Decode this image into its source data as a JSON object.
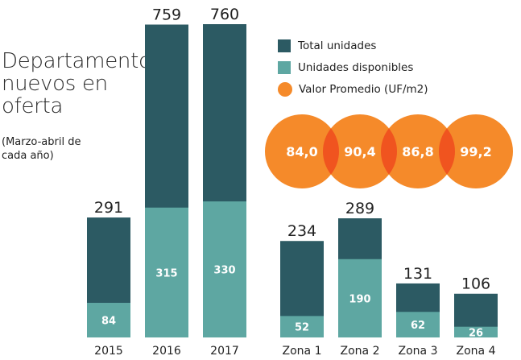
{
  "title": "Departamentos nuevos en oferta",
  "subtitle": "(Marzo-abril de cada año)",
  "colors": {
    "total": "#2c5a63",
    "disponibles": "#5ea7a2",
    "valor": "#f58a2a",
    "overlap": "#f0541f"
  },
  "legend": {
    "total": "Total unidades",
    "disponibles": "Unidades disponibles",
    "valor": "Valor Promedio (UF/m2)"
  },
  "chart_data": [
    {
      "type": "bar",
      "stacked": "overlay",
      "categories": [
        "2015",
        "2016",
        "2017"
      ],
      "series": [
        {
          "name": "Total unidades",
          "values": [
            291,
            759,
            760
          ]
        },
        {
          "name": "Unidades disponibles",
          "values": [
            84,
            315,
            330
          ]
        }
      ],
      "value_labels_top": [
        "291",
        "759",
        "760"
      ],
      "value_labels_inside": [
        "84",
        "315",
        "330"
      ]
    },
    {
      "type": "bar",
      "stacked": "overlay",
      "categories": [
        "Zona 1",
        "Zona 2",
        "Zona 3",
        "Zona 4"
      ],
      "series": [
        {
          "name": "Total unidades",
          "values": [
            234,
            289,
            131,
            106
          ]
        },
        {
          "name": "Unidades disponibles",
          "values": [
            52,
            190,
            62,
            26
          ]
        },
        {
          "name": "Valor Promedio (UF/m2)",
          "values": [
            84.0,
            90.4,
            86.8,
            99.2
          ]
        }
      ],
      "value_labels_top": [
        "234",
        "289",
        "131",
        "106"
      ],
      "value_labels_inside": [
        "52",
        "190",
        "62",
        "26"
      ],
      "circle_labels": [
        "84,0",
        "90,4",
        "86,8",
        "99,2"
      ]
    }
  ]
}
